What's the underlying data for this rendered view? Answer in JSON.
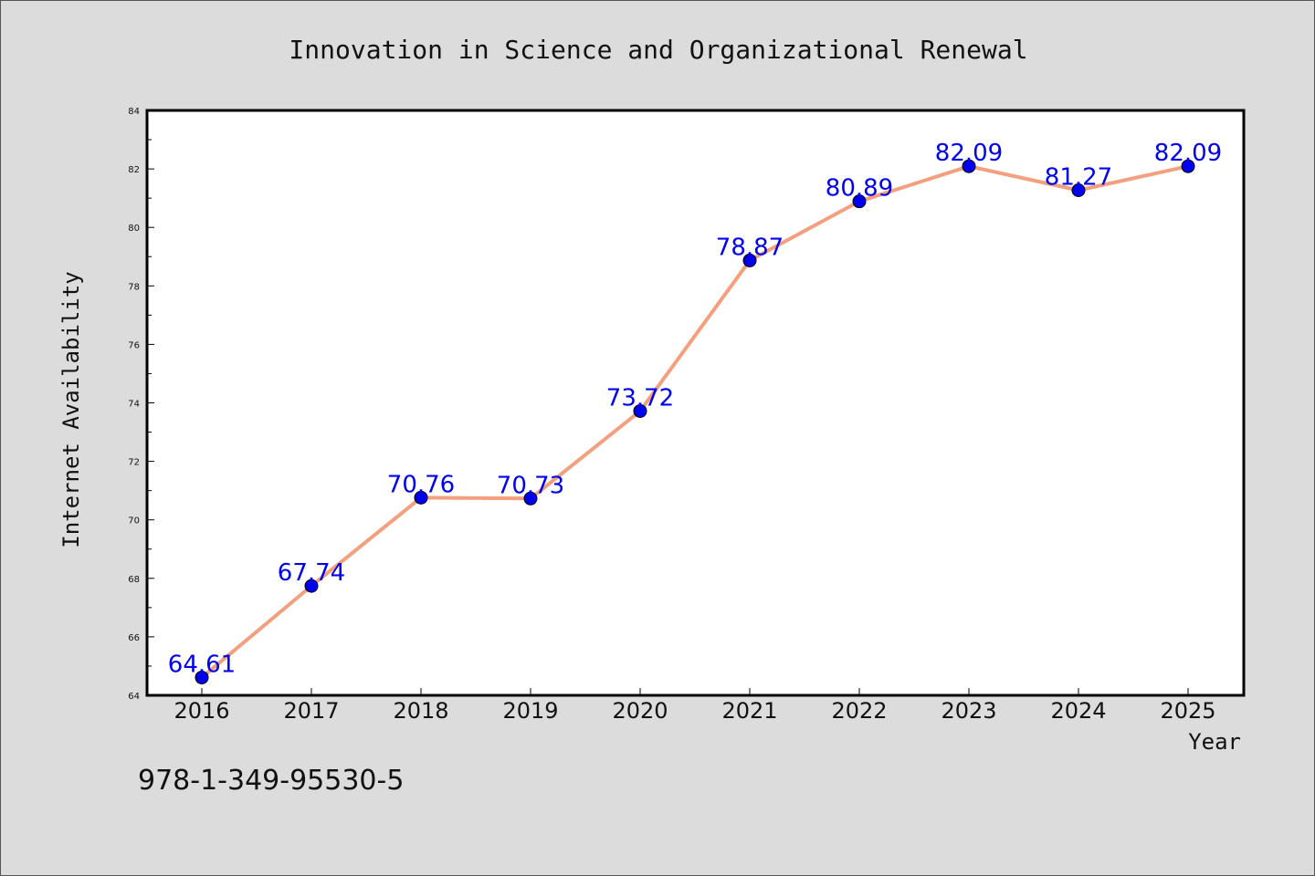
{
  "chart_data": {
    "type": "line",
    "title": "Innovation in Science and Organizational Renewal",
    "xlabel": "Year",
    "ylabel": "Internet Availability",
    "categories": [
      "2016",
      "2017",
      "2018",
      "2019",
      "2020",
      "2021",
      "2022",
      "2023",
      "2024",
      "2025"
    ],
    "series": [
      {
        "values": [
          64.61,
          67.74,
          70.76,
          70.73,
          73.72,
          78.87,
          80.89,
          82.09,
          81.27,
          82.09
        ]
      }
    ],
    "data_labels": [
      "64.61",
      "67.74",
      "70.76",
      "70.73",
      "73.72",
      "78.87",
      "80.89",
      "82.09",
      "81.27",
      "82.09"
    ],
    "ylim": [
      64,
      84
    ],
    "yticks": [
      64,
      66,
      68,
      70,
      72,
      74,
      76,
      78,
      80,
      82,
      84
    ],
    "grid": false,
    "colors": {
      "line": "#f4a07f",
      "marker": "#0000ee",
      "data_label": "#0000ee",
      "plot_background": "#ffffff",
      "figure_background": "#dcdcdc"
    }
  },
  "footer": {
    "text": "978-1-349-95530-5"
  }
}
